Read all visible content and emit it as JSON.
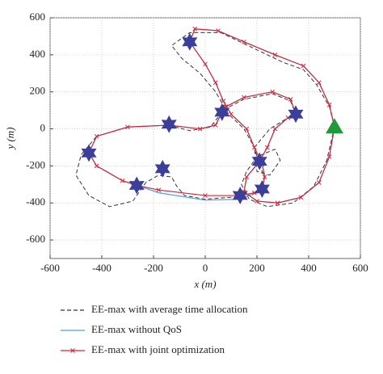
{
  "chart_data": {
    "type": "line",
    "xlabel": "x (m)",
    "ylabel": "y (m)",
    "xlim": [
      -600,
      600
    ],
    "ylim": [
      -700,
      600
    ],
    "xticks": [
      -600,
      -400,
      -200,
      0,
      200,
      400,
      600
    ],
    "yticks": [
      -600,
      -400,
      -200,
      0,
      200,
      400,
      600
    ],
    "grid": true,
    "series": [
      {
        "name": "EE-max with average time allocation",
        "color": "#333333",
        "dash": true,
        "marker": false,
        "x": [
          500,
          470,
          420,
          340,
          240,
          170,
          140,
          160,
          200,
          270,
          290,
          250,
          200,
          190,
          250,
          320,
          350,
          330,
          260,
          150,
          80,
          65,
          20,
          -60,
          -140,
          -300,
          -420,
          -480,
          -500,
          -450,
          -370,
          -280,
          -230,
          -180,
          -130,
          -110,
          -80,
          0,
          135,
          200,
          220,
          230,
          210,
          190,
          150,
          90,
          40,
          -20,
          -90,
          -130,
          -60,
          60,
          180,
          300,
          380,
          430,
          480,
          500
        ],
        "y": [
          10,
          -170,
          -310,
          -400,
          -420,
          -380,
          -300,
          -230,
          -150,
          -110,
          -170,
          -250,
          -230,
          -100,
          0,
          60,
          80,
          150,
          190,
          160,
          110,
          90,
          10,
          -10,
          20,
          10,
          -40,
          -140,
          -250,
          -360,
          -420,
          -390,
          -290,
          -250,
          -260,
          -310,
          -360,
          -380,
          -365,
          -340,
          -325,
          -260,
          -200,
          -100,
          0,
          80,
          200,
          300,
          380,
          450,
          520,
          520,
          440,
          360,
          320,
          240,
          120,
          10
        ]
      },
      {
        "name": "EE-max without QoS",
        "color": "#4aa3df",
        "dash": false,
        "marker": false,
        "x": [
          500,
          480,
          440,
          370,
          280,
          200,
          150,
          160,
          210,
          240,
          270,
          320,
          350,
          330,
          260,
          150,
          80,
          65,
          40,
          -20,
          -140,
          -300,
          -420,
          -450,
          -420,
          -320,
          -265,
          -180,
          0,
          130,
          190,
          220,
          230,
          220,
          190,
          160,
          100,
          70,
          40,
          0,
          -60,
          -40,
          50,
          150,
          270,
          380,
          440,
          480,
          500
        ],
        "y": [
          10,
          -150,
          -290,
          -370,
          -400,
          -390,
          -340,
          -260,
          -175,
          -100,
          0,
          60,
          80,
          160,
          200,
          170,
          120,
          90,
          20,
          0,
          20,
          10,
          -40,
          -130,
          -200,
          -280,
          -305,
          -345,
          -385,
          -380,
          -350,
          -325,
          -260,
          -190,
          -100,
          0,
          80,
          150,
          250,
          350,
          470,
          540,
          530,
          470,
          400,
          340,
          250,
          130,
          10
        ]
      },
      {
        "name": "EE-max with joint optimization",
        "color": "#d0283a",
        "dash": false,
        "marker": true,
        "x": [
          500,
          480,
          440,
          370,
          280,
          200,
          150,
          160,
          210,
          240,
          270,
          320,
          350,
          330,
          260,
          150,
          80,
          65,
          40,
          -20,
          -140,
          -300,
          -420,
          -450,
          -420,
          -320,
          -265,
          -180,
          0,
          135,
          190,
          220,
          230,
          220,
          190,
          160,
          100,
          70,
          40,
          0,
          -60,
          -40,
          50,
          150,
          270,
          380,
          440,
          480,
          500
        ],
        "y": [
          10,
          -150,
          -290,
          -370,
          -400,
          -390,
          -340,
          -260,
          -175,
          -100,
          0,
          60,
          80,
          160,
          200,
          170,
          120,
          90,
          20,
          0,
          20,
          10,
          -40,
          -130,
          -200,
          -280,
          -305,
          -330,
          -360,
          -360,
          -345,
          -325,
          -260,
          -190,
          -100,
          0,
          80,
          150,
          250,
          350,
          470,
          540,
          530,
          470,
          400,
          340,
          250,
          130,
          10
        ]
      }
    ],
    "users": {
      "color": "#3b3f99",
      "x": [
        -60,
        65,
        350,
        -140,
        -450,
        -165,
        -265,
        210,
        220,
        135
      ],
      "y": [
        470,
        90,
        80,
        25,
        -130,
        -215,
        -305,
        -175,
        -325,
        -360
      ]
    },
    "base_station": {
      "color": "#1e9a3c",
      "x": [
        500
      ],
      "y": [
        10
      ]
    }
  }
}
